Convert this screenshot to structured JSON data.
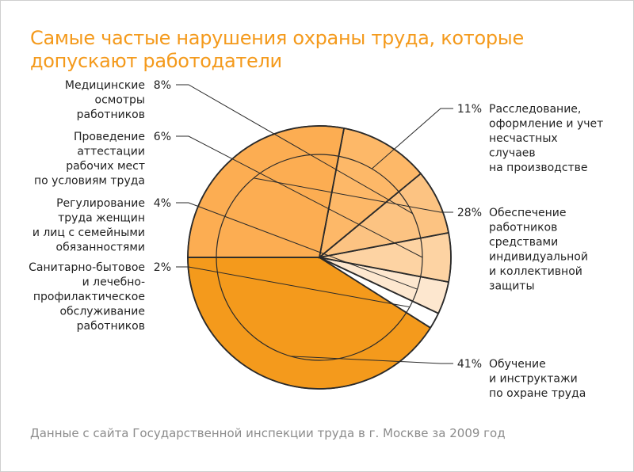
{
  "title": "Самые частые нарушения охраны труда, которые допускают работодатели",
  "source": "Данные с сайта Государственной инспекции труда в г. Москве за 2009 год",
  "chart_data": {
    "type": "pie",
    "title": "Самые частые нарушения охраны труда, которые допускают работодатели",
    "slices": [
      {
        "label": "Обучение и инструктажи по охране труда",
        "label_lines": [
          "Обучение",
          "и инструктажи",
          "по охране труда"
        ],
        "value": 41,
        "percent_label": "41%",
        "color": "#f49a1c"
      },
      {
        "label": "Санитарно-бытовое и лечебно-профилактическое обслуживание работников",
        "label_lines": [
          "Санитарно-бытовое",
          "и лечебно-",
          "профилактическое",
          "обслуживание",
          "работников"
        ],
        "value": 2,
        "percent_label": "2%",
        "color": "#ffffff"
      },
      {
        "label": "Регулирование труда женщин и лиц с семейными обязанностями",
        "label_lines": [
          "Регулирование",
          "труда женщин",
          "и лиц с семейными",
          "обязанностями"
        ],
        "value": 4,
        "percent_label": "4%",
        "color": "#fde7cf"
      },
      {
        "label": "Проведение аттестации рабочих мест по условиям труда",
        "label_lines": [
          "Проведение",
          "аттестации",
          "рабочих мест",
          "по условиям труда"
        ],
        "value": 6,
        "percent_label": "6%",
        "color": "#fdd3a3"
      },
      {
        "label": "Медицинские осмотры работников",
        "label_lines": [
          "Медицинские",
          "осмотры",
          "работников"
        ],
        "value": 8,
        "percent_label": "8%",
        "color": "#fcc382"
      },
      {
        "label": "Расследование, оформление и учет несчастных случаев на производстве",
        "label_lines": [
          "Расследование,",
          "оформление и учет",
          "несчастных",
          "случаев",
          "на производстве"
        ],
        "value": 11,
        "percent_label": "11%",
        "color": "#fdb868"
      },
      {
        "label": "Обеспечение работников средствами индивидуальной и коллективной защиты",
        "label_lines": [
          "Обеспечение",
          "работников",
          "средствами",
          "индивидуальной",
          "и коллективной",
          "защиты"
        ],
        "value": 28,
        "percent_label": "28%",
        "color": "#fcad52"
      }
    ]
  }
}
